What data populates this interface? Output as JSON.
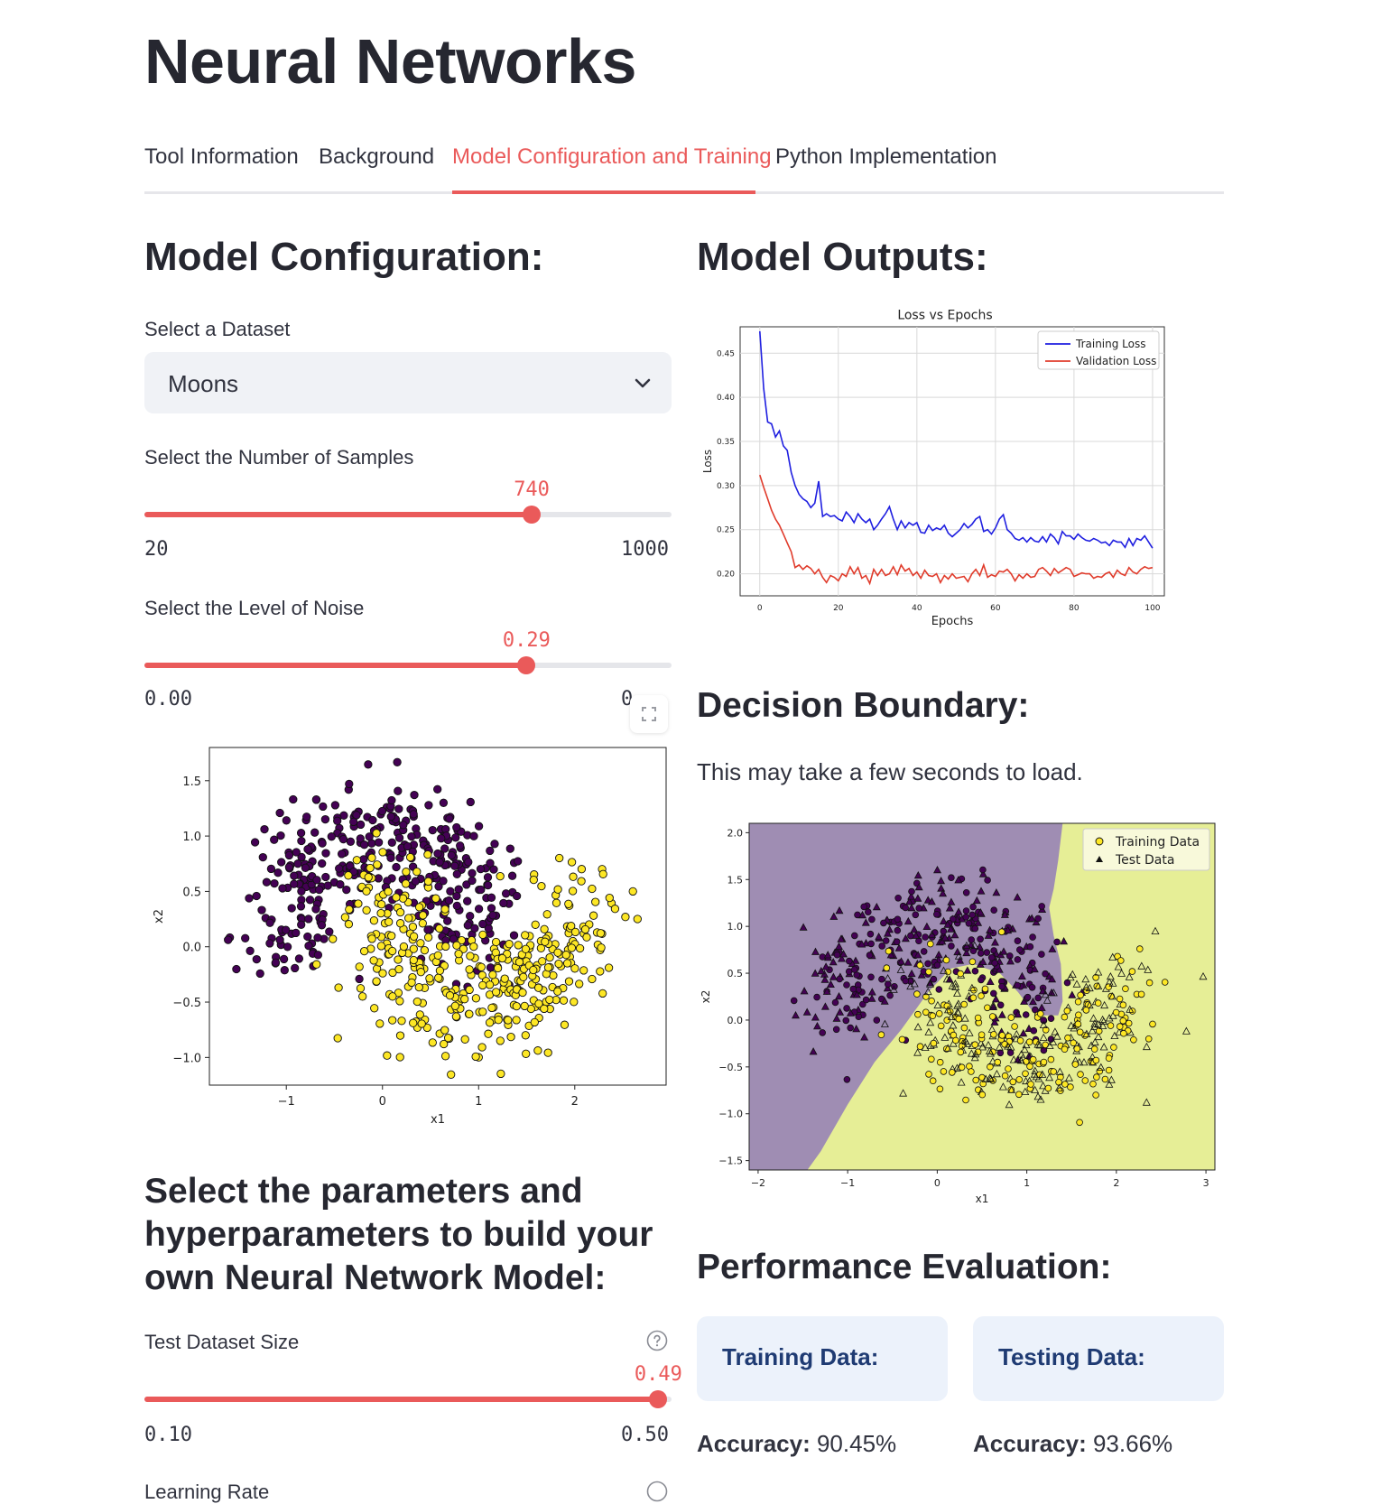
{
  "page": {
    "title": "Neural Networks"
  },
  "tabs": [
    {
      "label": "Tool Information",
      "active": false
    },
    {
      "label": "Background",
      "active": false
    },
    {
      "label": "Model Configuration and Training",
      "active": true
    },
    {
      "label": "Python Implementation",
      "active": false
    }
  ],
  "config": {
    "heading": "Model Configuration:",
    "dataset_label": "Select a Dataset",
    "dataset_value": "Moons",
    "samples": {
      "label": "Select the Number of Samples",
      "value": "740",
      "min": "20",
      "max": "1000",
      "fraction": 0.7347
    },
    "noise": {
      "label": "Select the Level of Noise",
      "value": "0.29",
      "min": "0.00",
      "max_visible": "0.",
      "fraction": 0.725
    },
    "params_heading": [
      "Select the parameters and",
      "hyperparameters to build your",
      "own Neural Network Model:"
    ],
    "test_size": {
      "label": "Test Dataset Size",
      "value": "0.49",
      "min": "0.10",
      "max": "0.50",
      "fraction": 0.975
    },
    "next_label_partial": "Learning Rate"
  },
  "outputs": {
    "heading": "Model Outputs:",
    "decision_heading": "Decision Boundary:",
    "decision_note": "This may take a few seconds to load.",
    "perf_heading": "Performance Evaluation:",
    "train_card": "Training Data:",
    "test_card": "Testing Data:",
    "accuracy_label": "Accuracy:",
    "train_accuracy": "90.45%",
    "test_accuracy": "93.66%"
  },
  "colors": {
    "accent": "#ea5a5a",
    "purple": "#440154",
    "yellow": "#fde725",
    "train_line": "#1f1fe0",
    "val_line": "#e03b2b",
    "card_title": "#1f3b73"
  },
  "icons": {
    "dropdown": "chevron-down-icon",
    "help": "question-circle-icon",
    "expand": "fullscreen-icon"
  },
  "chart_data": [
    {
      "type": "line",
      "title": "Loss vs Epochs",
      "xlabel": "Epochs",
      "ylabel": "Loss",
      "xlim": [
        -5,
        103
      ],
      "ylim": [
        0.175,
        0.48
      ],
      "xticks": [
        "0",
        "20",
        "40",
        "60",
        "80",
        "100"
      ],
      "yticks": [
        "0.20",
        "0.25",
        "0.30",
        "0.35",
        "0.40",
        "0.45"
      ],
      "grid": true,
      "legend": "top-right",
      "series": [
        {
          "name": "Training Loss",
          "values": [
            0.475,
            0.41,
            0.372,
            0.37,
            0.355,
            0.362,
            0.345,
            0.34,
            0.315,
            0.3,
            0.29,
            0.285,
            0.282,
            0.275,
            0.28,
            0.305,
            0.265,
            0.268,
            0.265,
            0.266,
            0.262,
            0.26,
            0.27,
            0.265,
            0.258,
            0.268,
            0.262,
            0.258,
            0.262,
            0.25,
            0.255,
            0.262,
            0.268,
            0.276,
            0.262,
            0.25,
            0.26,
            0.252,
            0.258,
            0.255,
            0.258,
            0.247,
            0.246,
            0.255,
            0.249,
            0.252,
            0.25,
            0.255,
            0.246,
            0.242,
            0.246,
            0.25,
            0.257,
            0.252,
            0.256,
            0.262,
            0.265,
            0.248,
            0.25,
            0.245,
            0.252,
            0.262,
            0.267,
            0.25,
            0.246,
            0.24,
            0.238,
            0.241,
            0.236,
            0.241,
            0.237,
            0.236,
            0.242,
            0.236,
            0.245,
            0.241,
            0.234,
            0.248,
            0.243,
            0.243,
            0.239,
            0.245,
            0.241,
            0.238,
            0.237,
            0.24,
            0.238,
            0.235,
            0.236,
            0.232,
            0.238,
            0.236,
            0.236,
            0.23,
            0.24,
            0.232,
            0.24,
            0.238,
            0.243,
            0.236,
            0.229
          ]
        },
        {
          "name": "Validation Loss",
          "values": [
            0.312,
            0.298,
            0.285,
            0.272,
            0.262,
            0.255,
            0.245,
            0.235,
            0.225,
            0.207,
            0.21,
            0.205,
            0.209,
            0.206,
            0.2,
            0.205,
            0.196,
            0.19,
            0.198,
            0.196,
            0.192,
            0.2,
            0.197,
            0.208,
            0.2,
            0.207,
            0.195,
            0.198,
            0.189,
            0.205,
            0.198,
            0.205,
            0.198,
            0.2,
            0.208,
            0.199,
            0.21,
            0.203,
            0.206,
            0.198,
            0.202,
            0.195,
            0.204,
            0.198,
            0.197,
            0.2,
            0.19,
            0.198,
            0.194,
            0.2,
            0.195,
            0.196,
            0.197,
            0.191,
            0.2,
            0.205,
            0.198,
            0.21,
            0.196,
            0.199,
            0.197,
            0.203,
            0.202,
            0.205,
            0.2,
            0.192,
            0.199,
            0.195,
            0.2,
            0.196,
            0.197,
            0.205,
            0.207,
            0.203,
            0.198,
            0.206,
            0.201,
            0.204,
            0.207,
            0.205,
            0.197,
            0.199,
            0.201,
            0.2,
            0.2,
            0.195,
            0.197,
            0.196,
            0.2,
            0.202,
            0.196,
            0.204,
            0.2,
            0.198,
            0.207,
            0.202,
            0.2,
            0.205,
            0.208,
            0.206,
            0.207
          ]
        }
      ]
    },
    {
      "type": "scatter",
      "title": "",
      "xlabel": "x1",
      "ylabel": "x2",
      "xlim": [
        -1.8,
        2.95
      ],
      "ylim": [
        -1.25,
        1.8
      ],
      "xticks": [
        "−1",
        "0",
        "1",
        "2"
      ],
      "yticks": [
        "−1.0",
        "−0.5",
        "0.0",
        "0.5",
        "1.0",
        "1.5"
      ],
      "grid": false,
      "classes": [
        "0",
        "1"
      ],
      "n_points": 740,
      "noise": 0.29
    },
    {
      "type": "scatter",
      "title": "",
      "xlabel": "x1",
      "ylabel": "x2",
      "xlim": [
        -2.1,
        3.1
      ],
      "ylim": [
        -1.6,
        2.1
      ],
      "xticks": [
        "−2",
        "−1",
        "0",
        "1",
        "2",
        "3"
      ],
      "yticks": [
        "−1.5",
        "−1.0",
        "−0.5",
        "0.0",
        "0.5",
        "1.0",
        "1.5",
        "2.0"
      ],
      "grid": false,
      "legend": "top-right",
      "series": [
        {
          "name": "Training Data",
          "marker": "circle"
        },
        {
          "name": "Test Data",
          "marker": "triangle"
        }
      ],
      "regions": [
        "class 0 (purple)",
        "class 1 (yellow)"
      ]
    }
  ]
}
